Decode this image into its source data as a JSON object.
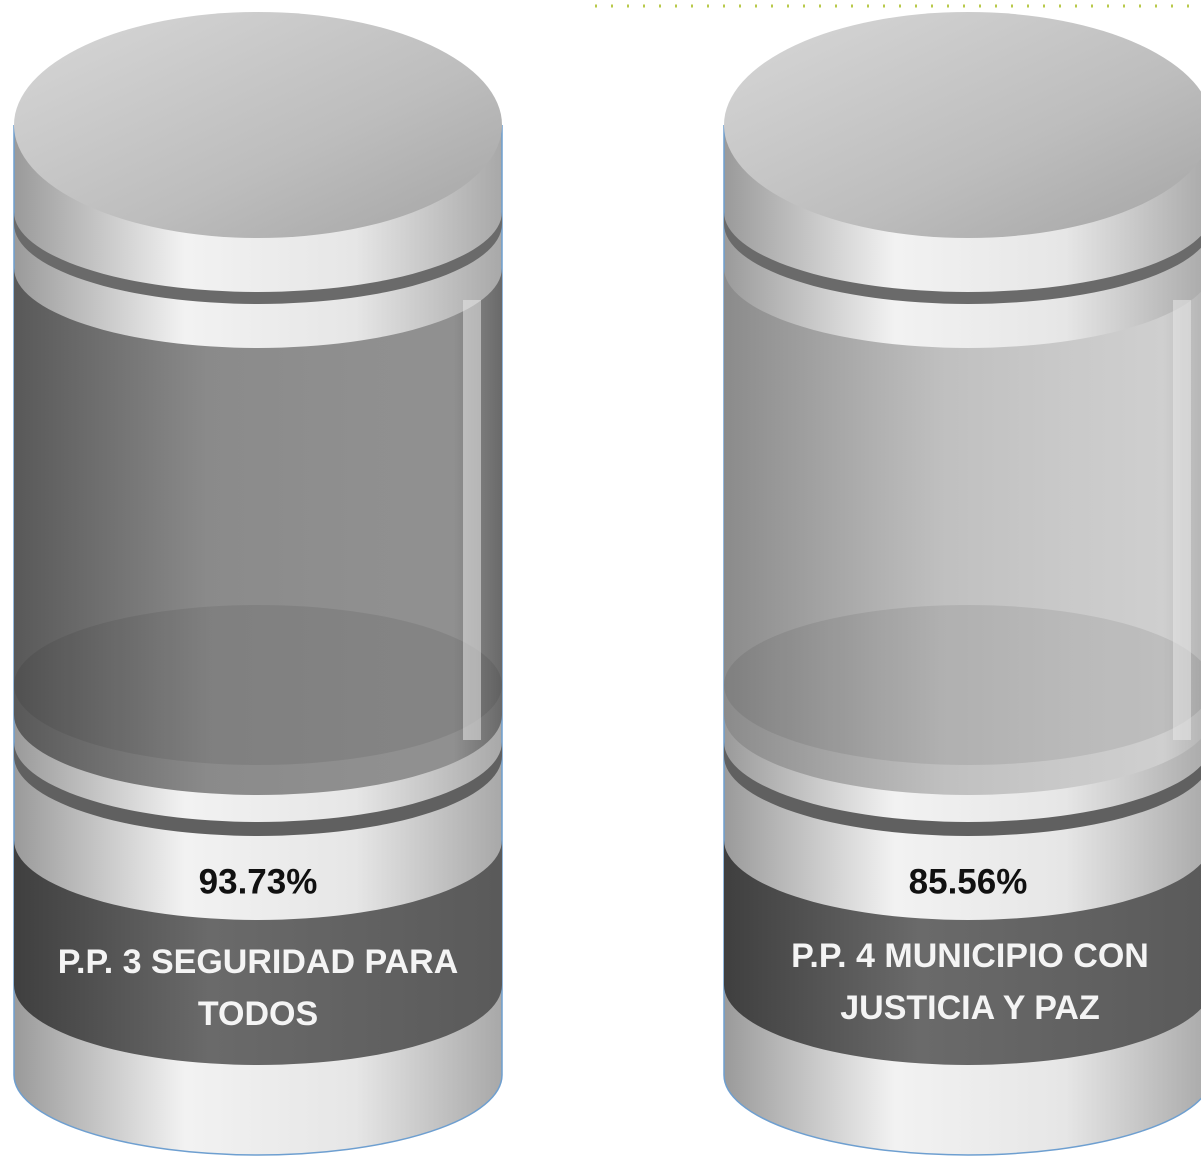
{
  "items": [
    {
      "percentage": "93.73%",
      "label_lines": [
        "P.P. 3 SEGURIDAD PARA",
        "TODOS"
      ]
    },
    {
      "percentage": "85.56%",
      "label_lines": [
        "P.P. 4 MUNICIPIO CON",
        "JUSTICIA Y PAZ"
      ]
    }
  ]
}
